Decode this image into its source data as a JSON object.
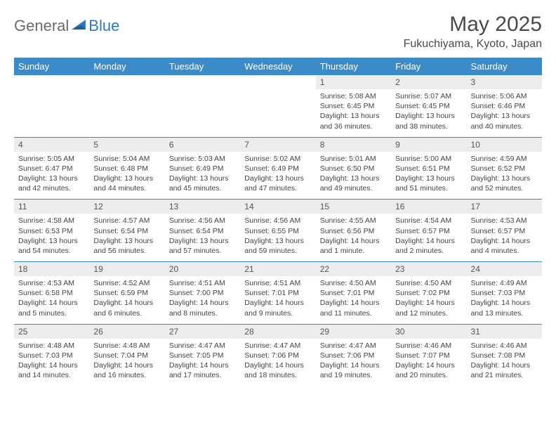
{
  "logo": {
    "part1": "General",
    "part2": "Blue"
  },
  "title": "May 2025",
  "location": "Fukuchiyama, Kyoto, Japan",
  "colors": {
    "header_bg": "#3b8bc9",
    "header_text": "#ffffff",
    "daynum_bg": "#ededed",
    "text": "#444444",
    "logo_gray": "#6b6b6b",
    "logo_blue": "#2b7bbf"
  },
  "daysOfWeek": [
    "Sunday",
    "Monday",
    "Tuesday",
    "Wednesday",
    "Thursday",
    "Friday",
    "Saturday"
  ],
  "weeks": [
    [
      null,
      null,
      null,
      null,
      {
        "n": "1",
        "sr": "5:08 AM",
        "ss": "6:45 PM",
        "dl": "13 hours and 36 minutes."
      },
      {
        "n": "2",
        "sr": "5:07 AM",
        "ss": "6:45 PM",
        "dl": "13 hours and 38 minutes."
      },
      {
        "n": "3",
        "sr": "5:06 AM",
        "ss": "6:46 PM",
        "dl": "13 hours and 40 minutes."
      }
    ],
    [
      {
        "n": "4",
        "sr": "5:05 AM",
        "ss": "6:47 PM",
        "dl": "13 hours and 42 minutes."
      },
      {
        "n": "5",
        "sr": "5:04 AM",
        "ss": "6:48 PM",
        "dl": "13 hours and 44 minutes."
      },
      {
        "n": "6",
        "sr": "5:03 AM",
        "ss": "6:49 PM",
        "dl": "13 hours and 45 minutes."
      },
      {
        "n": "7",
        "sr": "5:02 AM",
        "ss": "6:49 PM",
        "dl": "13 hours and 47 minutes."
      },
      {
        "n": "8",
        "sr": "5:01 AM",
        "ss": "6:50 PM",
        "dl": "13 hours and 49 minutes."
      },
      {
        "n": "9",
        "sr": "5:00 AM",
        "ss": "6:51 PM",
        "dl": "13 hours and 51 minutes."
      },
      {
        "n": "10",
        "sr": "4:59 AM",
        "ss": "6:52 PM",
        "dl": "13 hours and 52 minutes."
      }
    ],
    [
      {
        "n": "11",
        "sr": "4:58 AM",
        "ss": "6:53 PM",
        "dl": "13 hours and 54 minutes."
      },
      {
        "n": "12",
        "sr": "4:57 AM",
        "ss": "6:54 PM",
        "dl": "13 hours and 56 minutes."
      },
      {
        "n": "13",
        "sr": "4:56 AM",
        "ss": "6:54 PM",
        "dl": "13 hours and 57 minutes."
      },
      {
        "n": "14",
        "sr": "4:56 AM",
        "ss": "6:55 PM",
        "dl": "13 hours and 59 minutes."
      },
      {
        "n": "15",
        "sr": "4:55 AM",
        "ss": "6:56 PM",
        "dl": "14 hours and 1 minute."
      },
      {
        "n": "16",
        "sr": "4:54 AM",
        "ss": "6:57 PM",
        "dl": "14 hours and 2 minutes."
      },
      {
        "n": "17",
        "sr": "4:53 AM",
        "ss": "6:57 PM",
        "dl": "14 hours and 4 minutes."
      }
    ],
    [
      {
        "n": "18",
        "sr": "4:53 AM",
        "ss": "6:58 PM",
        "dl": "14 hours and 5 minutes."
      },
      {
        "n": "19",
        "sr": "4:52 AM",
        "ss": "6:59 PM",
        "dl": "14 hours and 6 minutes."
      },
      {
        "n": "20",
        "sr": "4:51 AM",
        "ss": "7:00 PM",
        "dl": "14 hours and 8 minutes."
      },
      {
        "n": "21",
        "sr": "4:51 AM",
        "ss": "7:01 PM",
        "dl": "14 hours and 9 minutes."
      },
      {
        "n": "22",
        "sr": "4:50 AM",
        "ss": "7:01 PM",
        "dl": "14 hours and 11 minutes."
      },
      {
        "n": "23",
        "sr": "4:50 AM",
        "ss": "7:02 PM",
        "dl": "14 hours and 12 minutes."
      },
      {
        "n": "24",
        "sr": "4:49 AM",
        "ss": "7:03 PM",
        "dl": "14 hours and 13 minutes."
      }
    ],
    [
      {
        "n": "25",
        "sr": "4:48 AM",
        "ss": "7:03 PM",
        "dl": "14 hours and 14 minutes."
      },
      {
        "n": "26",
        "sr": "4:48 AM",
        "ss": "7:04 PM",
        "dl": "14 hours and 16 minutes."
      },
      {
        "n": "27",
        "sr": "4:47 AM",
        "ss": "7:05 PM",
        "dl": "14 hours and 17 minutes."
      },
      {
        "n": "28",
        "sr": "4:47 AM",
        "ss": "7:06 PM",
        "dl": "14 hours and 18 minutes."
      },
      {
        "n": "29",
        "sr": "4:47 AM",
        "ss": "7:06 PM",
        "dl": "14 hours and 19 minutes."
      },
      {
        "n": "30",
        "sr": "4:46 AM",
        "ss": "7:07 PM",
        "dl": "14 hours and 20 minutes."
      },
      {
        "n": "31",
        "sr": "4:46 AM",
        "ss": "7:08 PM",
        "dl": "14 hours and 21 minutes."
      }
    ]
  ],
  "labels": {
    "sunrise": "Sunrise:",
    "sunset": "Sunset:",
    "daylight": "Daylight:"
  }
}
